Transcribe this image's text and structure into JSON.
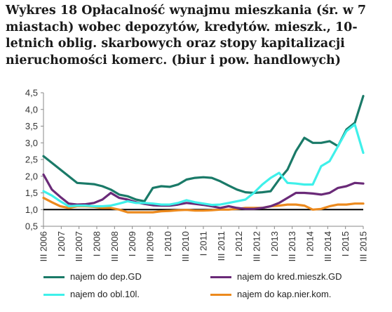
{
  "title_lines": [
    "Wykres 18 Opłacalność wynajmu mieszkania (śr. w 7",
    "miastach) wobec depozytów, kredytów. mieszk., 10-",
    "letnich oblig. skarbowych oraz stopy kapitalizacji",
    "nieruchomości komerc. (biur i pow. handlowych)"
  ],
  "chart_data": {
    "type": "line",
    "title": "Wykres 18 Opłacalność wynajmu mieszkania (śr. w 7 miastach) wobec depozytów, kredytów. mieszk., 10-letnich oblig. skarbowych oraz stopy kapitalizacji nieruchomości komerc. (biur i pow. handlowych)",
    "ylim": [
      0.5,
      4.5
    ],
    "yticks": [
      "0,5",
      "1,0",
      "1,5",
      "2,0",
      "2,5",
      "3,0",
      "3,5",
      "4,0",
      "4,5"
    ],
    "xticks": [
      "III 2006",
      "I 2007",
      "III 2007",
      "I 2008",
      "III 2008",
      "I 2009",
      "III 2009",
      "I 2010",
      "III 2010",
      "I 2011",
      "III 2011",
      "I 2012",
      "III 2012",
      "I 2013",
      "III 2013",
      "I 2014",
      "III 2014",
      "I 2015",
      "III 2015"
    ],
    "reference_line": 1.0,
    "grid": false,
    "legend_position": "bottom",
    "colors": {
      "dep": "#1a7a68",
      "kred": "#6a2a78",
      "obl": "#3ff0ea",
      "kap": "#ec8a1e",
      "reference": "#000000"
    },
    "series": [
      {
        "key": "dep",
        "name": "najem do dep.GD",
        "values": [
          2.6,
          2.4,
          2.2,
          2.0,
          1.8,
          1.78,
          1.76,
          1.7,
          1.6,
          1.45,
          1.4,
          1.3,
          1.25,
          1.65,
          1.7,
          1.68,
          1.75,
          1.9,
          1.95,
          1.97,
          1.95,
          1.85,
          1.72,
          1.6,
          1.52,
          1.5,
          1.52,
          1.55,
          1.9,
          2.2,
          2.75,
          3.15,
          3.0,
          3.0,
          3.05,
          2.9,
          3.4,
          3.6,
          4.4
        ]
      },
      {
        "key": "kred",
        "name": "najem do kred.mieszk.GD",
        "values": [
          2.05,
          1.6,
          1.38,
          1.18,
          1.15,
          1.16,
          1.2,
          1.3,
          1.5,
          1.35,
          1.3,
          1.22,
          1.17,
          1.13,
          1.12,
          1.12,
          1.15,
          1.2,
          1.17,
          1.14,
          1.1,
          1.05,
          1.1,
          1.05,
          1.02,
          1.02,
          1.05,
          1.1,
          1.2,
          1.35,
          1.5,
          1.5,
          1.48,
          1.45,
          1.5,
          1.65,
          1.7,
          1.8,
          1.78
        ]
      },
      {
        "key": "obl",
        "name": "najem do obl.10l.",
        "values": [
          1.55,
          1.42,
          1.25,
          1.1,
          1.12,
          1.12,
          1.1,
          1.1,
          1.12,
          1.18,
          1.25,
          1.2,
          1.2,
          1.18,
          1.15,
          1.15,
          1.2,
          1.28,
          1.22,
          1.18,
          1.14,
          1.15,
          1.2,
          1.25,
          1.3,
          1.5,
          1.75,
          1.95,
          2.1,
          1.8,
          1.78,
          1.75,
          1.75,
          2.3,
          2.45,
          2.9,
          3.35,
          3.55,
          2.7
        ]
      },
      {
        "key": "kap",
        "name": "najem do kap.nier.kom.",
        "values": [
          1.35,
          1.22,
          1.1,
          1.05,
          1.1,
          1.1,
          1.08,
          1.05,
          1.05,
          1.0,
          0.92,
          0.92,
          0.92,
          0.92,
          0.95,
          0.96,
          0.98,
          0.99,
          0.97,
          0.97,
          0.98,
          1.0,
          1.0,
          1.02,
          1.05,
          1.05,
          1.05,
          1.1,
          1.12,
          1.15,
          1.15,
          1.12,
          1.0,
          1.02,
          1.1,
          1.15,
          1.15,
          1.18,
          1.18
        ]
      }
    ]
  }
}
